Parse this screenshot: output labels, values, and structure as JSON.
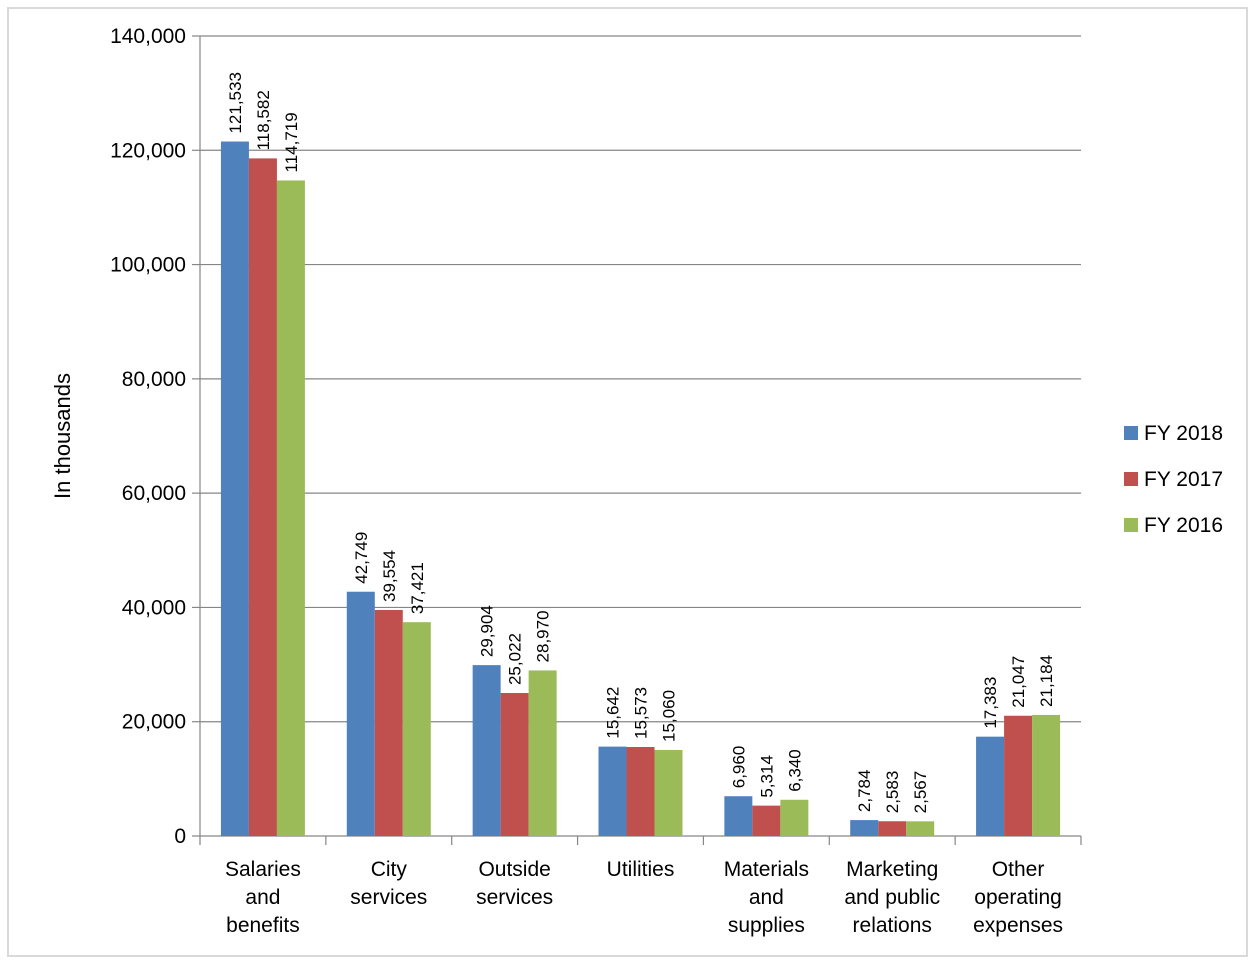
{
  "chart_data": {
    "type": "bar",
    "categories": [
      [
        "Salaries",
        "and",
        "benefits"
      ],
      [
        "City",
        "services"
      ],
      [
        "Outside",
        "services"
      ],
      [
        "Utilities"
      ],
      [
        "Materials",
        "and",
        "supplies"
      ],
      [
        "Marketing",
        "and public",
        "relations"
      ],
      [
        "Other",
        "operating",
        "expenses"
      ]
    ],
    "series": [
      {
        "name": "FY 2018",
        "color": "#4f81bd",
        "values": [
          121533,
          42749,
          29904,
          15642,
          6960,
          2784,
          17383
        ],
        "labels": [
          "121,533",
          "42,749",
          "29,904",
          "15,642",
          "6,960",
          "2,784",
          "17,383"
        ]
      },
      {
        "name": "FY 2017",
        "color": "#c0504d",
        "values": [
          118582,
          39554,
          25022,
          15573,
          5314,
          2583,
          21047
        ],
        "labels": [
          "118,582",
          "39,554",
          "25,022",
          "15,573",
          "5,314",
          "2,583",
          "21,047"
        ]
      },
      {
        "name": "FY 2016",
        "color": "#9bbb59",
        "values": [
          114719,
          37421,
          28970,
          15060,
          6340,
          2567,
          21184
        ],
        "labels": [
          "114,719",
          "37,421",
          "28,970",
          "15,060",
          "6,340",
          "2,567",
          "21,184"
        ]
      }
    ],
    "title": "",
    "xlabel": "",
    "ylabel": "In thousands",
    "ylim": [
      0,
      140000
    ],
    "yticks": [
      0,
      20000,
      40000,
      60000,
      80000,
      100000,
      120000,
      140000
    ],
    "ytick_labels": [
      "0",
      "20,000",
      "40,000",
      "60,000",
      "80,000",
      "100,000",
      "120,000",
      "140,000"
    ],
    "grid": true,
    "legend": "right",
    "colors": {
      "background": "#ffffff",
      "grid": "#868686",
      "axis": "#868686",
      "border": "#d9d9d9"
    }
  }
}
